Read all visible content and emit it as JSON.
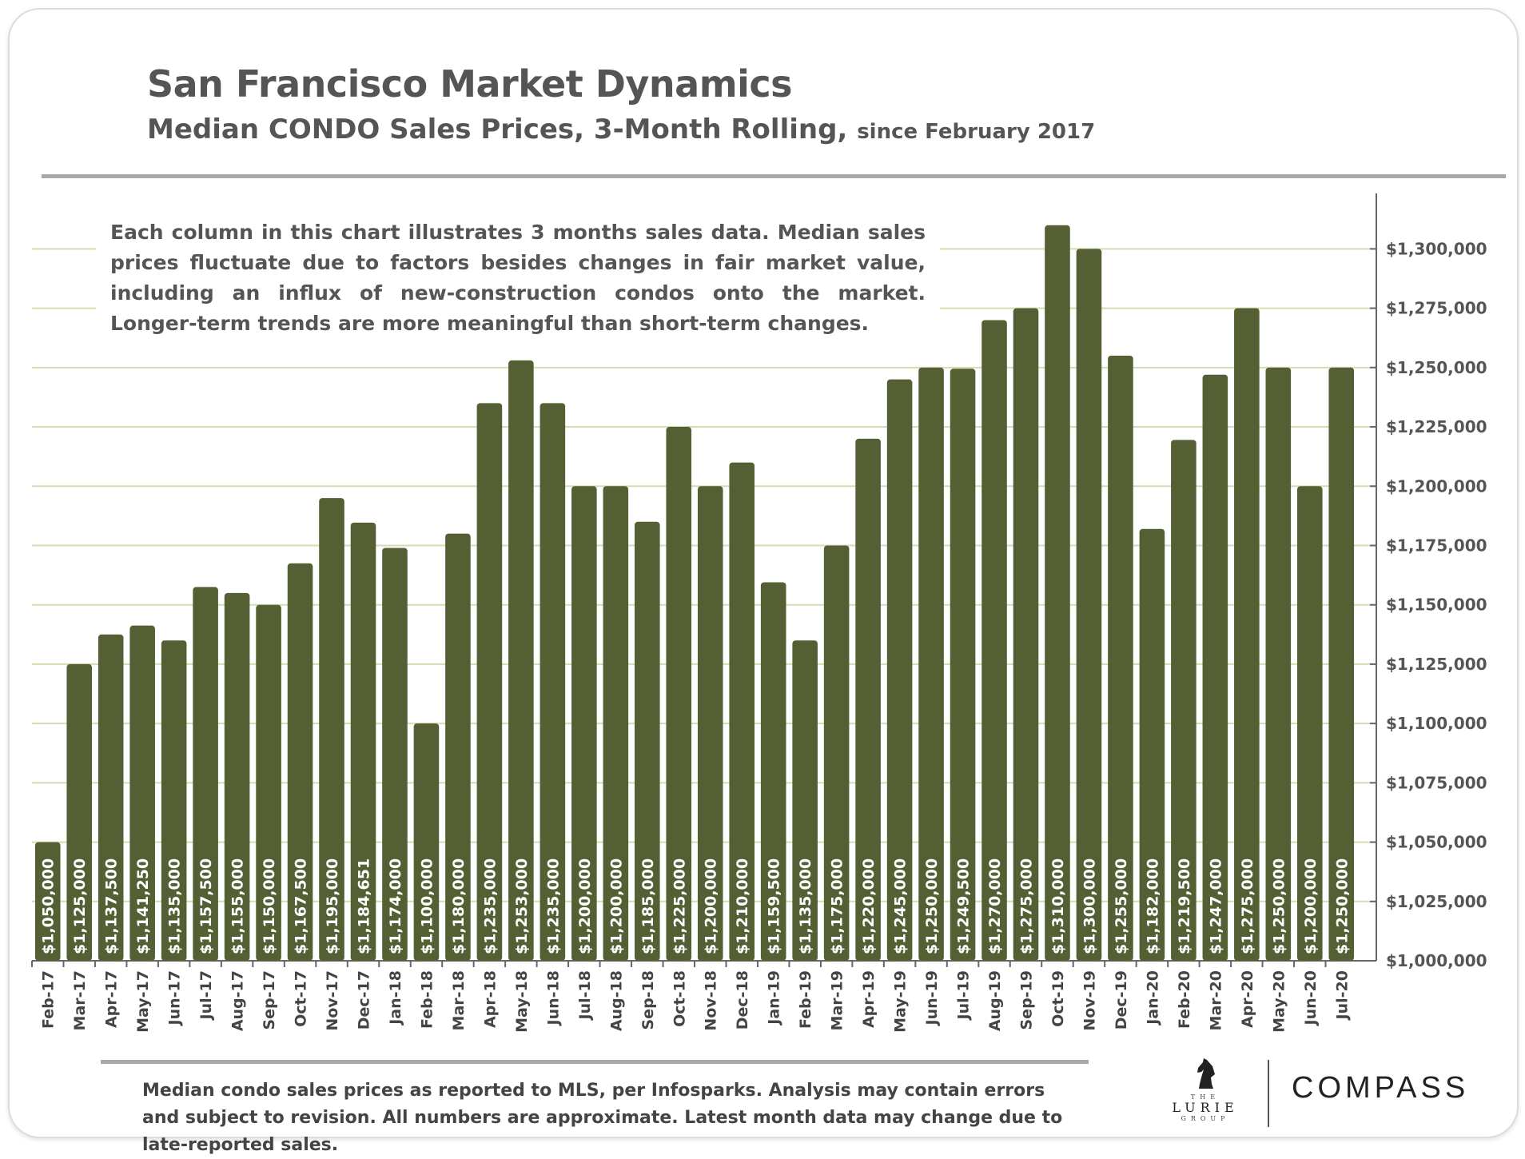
{
  "header": {
    "title": "San Francisco Market Dynamics",
    "subtitle": "Median CONDO Sales Prices, 3-Month Rolling,",
    "subtitle_small": "since February 2017"
  },
  "note": "Each column in this chart illustrates 3 months sales data. Median sales prices fluctuate due to factors besides changes in fair market value, including an influx of new-construction condos onto the market. Longer-term trends are more meaningful than short-term changes.",
  "footnote": "Median condo sales prices as reported to MLS, per Infosparks.  Analysis may contain errors and subject to revision. All numbers are approximate. Latest month data may change due to late-reported sales.",
  "branding": {
    "lurie_top": "THE",
    "lurie_name": "LURIE",
    "lurie_bottom": "GROUP",
    "compass": "COMPASS"
  },
  "colors": {
    "bar": "#546033",
    "grid": "#d4dcb0",
    "axis": "#666666"
  },
  "chart_data": {
    "type": "bar",
    "ylim": [
      1000000,
      1320000
    ],
    "y_ticks": [
      1000000,
      1025000,
      1050000,
      1075000,
      1100000,
      1125000,
      1150000,
      1175000,
      1200000,
      1225000,
      1250000,
      1275000,
      1300000
    ],
    "y_tick_labels": [
      "$1,000,000",
      "$1,025,000",
      "$1,050,000",
      "$1,075,000",
      "$1,100,000",
      "$1,125,000",
      "$1,150,000",
      "$1,175,000",
      "$1,200,000",
      "$1,225,000",
      "$1,250,000",
      "$1,275,000",
      "$1,300,000"
    ],
    "y_axis_position": "right",
    "grid": true,
    "categories": [
      "Feb-17",
      "Mar-17",
      "Apr-17",
      "May-17",
      "Jun-17",
      "Jul-17",
      "Aug-17",
      "Sep-17",
      "Oct-17",
      "Nov-17",
      "Dec-17",
      "Jan-18",
      "Feb-18",
      "Mar-18",
      "Apr-18",
      "May-18",
      "Jun-18",
      "Jul-18",
      "Aug-18",
      "Sep-18",
      "Oct-18",
      "Nov-18",
      "Dec-18",
      "Jan-19",
      "Feb-19",
      "Mar-19",
      "Apr-19",
      "May-19",
      "Jun-19",
      "Jul-19",
      "Aug-19",
      "Sep-19",
      "Oct-19",
      "Nov-19",
      "Dec-19",
      "Jan-20",
      "Feb-20",
      "Mar-20",
      "Apr-20",
      "May-20",
      "Jun-20",
      "Jul-20"
    ],
    "values": [
      1050000,
      1125000,
      1137500,
      1141250,
      1135000,
      1157500,
      1155000,
      1150000,
      1167500,
      1195000,
      1184651,
      1174000,
      1100000,
      1180000,
      1235000,
      1253000,
      1235000,
      1200000,
      1200000,
      1185000,
      1225000,
      1200000,
      1210000,
      1159500,
      1135000,
      1175000,
      1220000,
      1245000,
      1250000,
      1249500,
      1270000,
      1275000,
      1310000,
      1300000,
      1255000,
      1182000,
      1219500,
      1247000,
      1275000,
      1250000,
      1200000,
      1250000
    ],
    "data_labels": [
      "$1,050,000",
      "$1,125,000",
      "$1,137,500",
      "$1,141,250",
      "$1,135,000",
      "$1,157,500",
      "$1,155,000",
      "$1,150,000",
      "$1,167,500",
      "$1,195,000",
      "$1,184,651",
      "$1,174,000",
      "$1,100,000",
      "$1,180,000",
      "$1,235,000",
      "$1,253,000",
      "$1,235,000",
      "$1,200,000",
      "$1,200,000",
      "$1,185,000",
      "$1,225,000",
      "$1,200,000",
      "$1,210,000",
      "$1,159,500",
      "$1,135,000",
      "$1,175,000",
      "$1,220,000",
      "$1,245,000",
      "$1,250,000",
      "$1,249,500",
      "$1,270,000",
      "$1,275,000",
      "$1,310,000",
      "$1,300,000",
      "$1,255,000",
      "$1,182,000",
      "$1,219,500",
      "$1,247,000",
      "$1,275,000",
      "$1,250,000",
      "$1,200,000",
      "$1,250,000"
    ]
  }
}
